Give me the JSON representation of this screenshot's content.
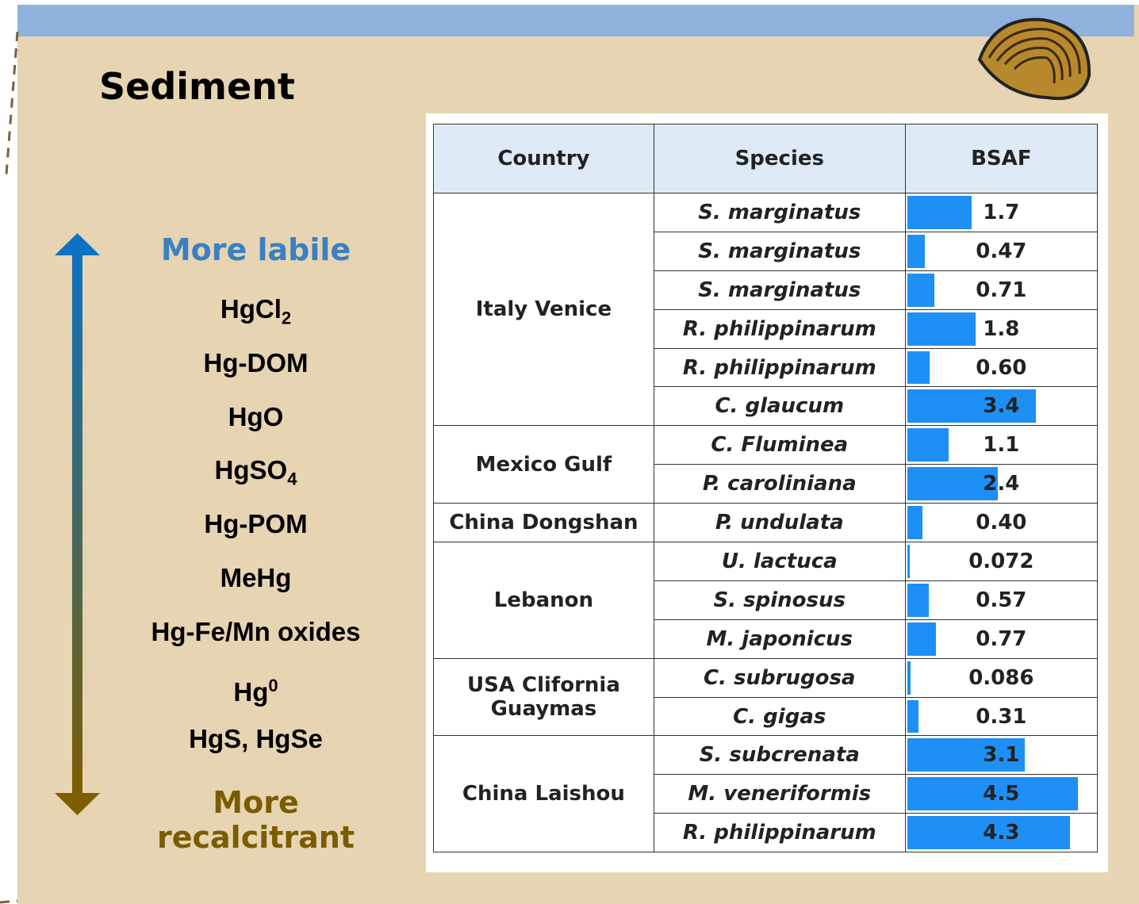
{
  "title": "Sediment",
  "scale": {
    "top_label": "More labile",
    "bottom_label": "More recalcitrant",
    "items": [
      {
        "base": "HgCl",
        "sub": "2"
      },
      {
        "base": "Hg-DOM"
      },
      {
        "base": "HgO"
      },
      {
        "base": "HgSO",
        "sub": "4"
      },
      {
        "base": "Hg-POM"
      },
      {
        "base": "MeHg"
      },
      {
        "base": "Hg-Fe/Mn oxides"
      },
      {
        "base": "Hg",
        "sup": "0"
      },
      {
        "base": "HgS, HgSe"
      }
    ]
  },
  "table": {
    "header": [
      "Country",
      "Species",
      "BSAF"
    ],
    "groups": [
      {
        "country": "Italy Venice",
        "rows": [
          {
            "species": "S. marginatus",
            "bsaf": 1.7
          },
          {
            "species": "S. marginatus",
            "bsaf": 0.47
          },
          {
            "species": "S. marginatus",
            "bsaf": 0.71
          },
          {
            "species": "R. philippinarum",
            "bsaf": 1.8
          },
          {
            "species": "R. philippinarum",
            "bsaf": 0.6,
            "bsaf_label": "0.60"
          },
          {
            "species": "C. glaucum",
            "bsaf": 3.4
          }
        ]
      },
      {
        "country": "Mexico Gulf",
        "rows": [
          {
            "species": "C. Fluminea",
            "bsaf": 1.1
          },
          {
            "species": "P. caroliniana",
            "bsaf": 2.4
          }
        ]
      },
      {
        "country": "China Dongshan",
        "rows": [
          {
            "species": "P. undulata",
            "bsaf": 0.4,
            "bsaf_label": "0.40"
          }
        ]
      },
      {
        "country": "Lebanon",
        "rows": [
          {
            "species": "U. lactuca",
            "bsaf": 0.072
          },
          {
            "species": "S. spinosus",
            "bsaf": 0.57
          },
          {
            "species": "M. japonicus",
            "bsaf": 0.77
          }
        ]
      },
      {
        "country": "USA Clifornia Guaymas",
        "rows": [
          {
            "species": "C. subrugosa",
            "bsaf": 0.086
          },
          {
            "species": "C. gigas",
            "bsaf": 0.31
          }
        ]
      },
      {
        "country": "China Laishou",
        "rows": [
          {
            "species": "S. subcrenata",
            "bsaf": 3.1
          },
          {
            "species": "M. veneriformis",
            "bsaf": 4.5
          },
          {
            "species": "R. philippinarum",
            "bsaf": 4.3
          }
        ]
      }
    ]
  }
}
